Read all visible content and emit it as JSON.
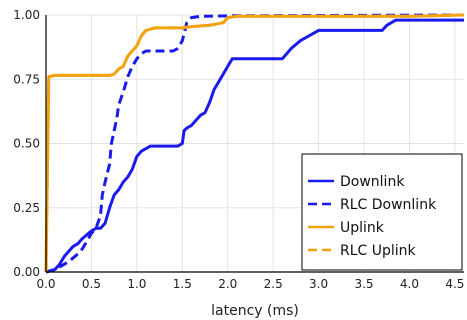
{
  "chart_data": {
    "type": "line",
    "title": "",
    "xlabel": "latency (ms)",
    "ylabel": "",
    "xlim": [
      0,
      4.6
    ],
    "ylim": [
      0,
      1.0
    ],
    "x_ticks": [
      "0.0",
      "0.5",
      "1.0",
      "1.5",
      "2.0",
      "2.5",
      "3.0",
      "3.5",
      "4.0",
      "4.5"
    ],
    "y_ticks": [
      "0.00",
      "0.25",
      "0.50",
      "0.75",
      "1.00"
    ],
    "grid": true,
    "legend_position": "bottom-right",
    "series": [
      {
        "name": "Downlink",
        "color": "#1a1aee",
        "style": "solid",
        "points": [
          [
            0,
            0
          ],
          [
            0.05,
            0.005
          ],
          [
            0.1,
            0.01
          ],
          [
            0.15,
            0.03
          ],
          [
            0.2,
            0.06
          ],
          [
            0.25,
            0.08
          ],
          [
            0.3,
            0.1
          ],
          [
            0.35,
            0.11
          ],
          [
            0.4,
            0.13
          ],
          [
            0.5,
            0.16
          ],
          [
            0.55,
            0.17
          ],
          [
            0.6,
            0.17
          ],
          [
            0.65,
            0.19
          ],
          [
            0.7,
            0.25
          ],
          [
            0.75,
            0.3
          ],
          [
            0.8,
            0.32
          ],
          [
            0.85,
            0.35
          ],
          [
            0.9,
            0.37
          ],
          [
            0.95,
            0.4
          ],
          [
            1.0,
            0.45
          ],
          [
            1.05,
            0.47
          ],
          [
            1.1,
            0.48
          ],
          [
            1.15,
            0.49
          ],
          [
            1.3,
            0.49
          ],
          [
            1.45,
            0.49
          ],
          [
            1.5,
            0.5
          ],
          [
            1.52,
            0.55
          ],
          [
            1.55,
            0.56
          ],
          [
            1.6,
            0.57
          ],
          [
            1.65,
            0.59
          ],
          [
            1.7,
            0.61
          ],
          [
            1.75,
            0.62
          ],
          [
            1.8,
            0.66
          ],
          [
            1.85,
            0.71
          ],
          [
            1.9,
            0.74
          ],
          [
            1.95,
            0.77
          ],
          [
            2.0,
            0.8
          ],
          [
            2.05,
            0.83
          ],
          [
            2.2,
            0.83
          ],
          [
            2.4,
            0.83
          ],
          [
            2.6,
            0.83
          ],
          [
            2.65,
            0.85
          ],
          [
            2.7,
            0.87
          ],
          [
            2.8,
            0.9
          ],
          [
            2.85,
            0.91
          ],
          [
            2.9,
            0.92
          ],
          [
            3.0,
            0.94
          ],
          [
            3.2,
            0.94
          ],
          [
            3.5,
            0.94
          ],
          [
            3.7,
            0.94
          ],
          [
            3.75,
            0.96
          ],
          [
            3.8,
            0.97
          ],
          [
            3.85,
            0.98
          ],
          [
            4.0,
            0.98
          ],
          [
            4.6,
            0.98
          ]
        ]
      },
      {
        "name": "RLC Downlink",
        "color": "#1a1aee",
        "style": "dashed",
        "points": [
          [
            0,
            0
          ],
          [
            0.05,
            0.005
          ],
          [
            0.1,
            0.01
          ],
          [
            0.15,
            0.02
          ],
          [
            0.25,
            0.04
          ],
          [
            0.35,
            0.07
          ],
          [
            0.4,
            0.09
          ],
          [
            0.45,
            0.12
          ],
          [
            0.5,
            0.15
          ],
          [
            0.55,
            0.17
          ],
          [
            0.6,
            0.22
          ],
          [
            0.62,
            0.3
          ],
          [
            0.65,
            0.35
          ],
          [
            0.7,
            0.42
          ],
          [
            0.72,
            0.5
          ],
          [
            0.75,
            0.55
          ],
          [
            0.78,
            0.6
          ],
          [
            0.8,
            0.65
          ],
          [
            0.85,
            0.7
          ],
          [
            0.9,
            0.76
          ],
          [
            0.95,
            0.8
          ],
          [
            1.0,
            0.83
          ],
          [
            1.05,
            0.85
          ],
          [
            1.1,
            0.86
          ],
          [
            1.15,
            0.86
          ],
          [
            1.3,
            0.86
          ],
          [
            1.4,
            0.86
          ],
          [
            1.45,
            0.87
          ],
          [
            1.5,
            0.9
          ],
          [
            1.55,
            0.97
          ],
          [
            1.6,
            0.99
          ],
          [
            1.7,
            0.995
          ],
          [
            2.0,
            0.997
          ],
          [
            4.6,
            1.0
          ]
        ]
      },
      {
        "name": "Uplink",
        "color": "#f2a30f",
        "style": "solid",
        "points": [
          [
            0,
            0
          ],
          [
            0.02,
            0.5
          ],
          [
            0.03,
            0.76
          ],
          [
            0.1,
            0.765
          ],
          [
            0.4,
            0.765
          ],
          [
            0.7,
            0.765
          ],
          [
            0.75,
            0.77
          ],
          [
            0.8,
            0.79
          ],
          [
            0.85,
            0.8
          ],
          [
            0.9,
            0.84
          ],
          [
            0.95,
            0.86
          ],
          [
            1.0,
            0.88
          ],
          [
            1.05,
            0.92
          ],
          [
            1.1,
            0.94
          ],
          [
            1.2,
            0.95
          ],
          [
            1.5,
            0.95
          ],
          [
            1.6,
            0.955
          ],
          [
            1.8,
            0.96
          ],
          [
            1.95,
            0.97
          ],
          [
            2.0,
            0.99
          ],
          [
            2.1,
            0.995
          ],
          [
            3.0,
            0.995
          ],
          [
            4.0,
            0.995
          ],
          [
            4.6,
            1.0
          ]
        ]
      },
      {
        "name": "RLC Uplink",
        "color": "#f2a30f",
        "style": "dashed",
        "points": [
          [
            0,
            0
          ],
          [
            0.02,
            0.5
          ],
          [
            0.03,
            0.76
          ],
          [
            0.1,
            0.765
          ],
          [
            0.4,
            0.765
          ],
          [
            0.7,
            0.765
          ],
          [
            0.75,
            0.77
          ],
          [
            0.8,
            0.79
          ],
          [
            0.85,
            0.8
          ],
          [
            0.9,
            0.84
          ],
          [
            0.95,
            0.86
          ],
          [
            1.0,
            0.88
          ],
          [
            1.05,
            0.92
          ],
          [
            1.1,
            0.94
          ],
          [
            1.2,
            0.95
          ],
          [
            1.5,
            0.95
          ],
          [
            1.6,
            0.955
          ],
          [
            1.8,
            0.96
          ],
          [
            1.95,
            0.97
          ],
          [
            2.0,
            0.99
          ],
          [
            2.1,
            0.995
          ],
          [
            3.0,
            0.995
          ],
          [
            4.0,
            0.995
          ],
          [
            4.6,
            1.0
          ]
        ]
      }
    ]
  }
}
